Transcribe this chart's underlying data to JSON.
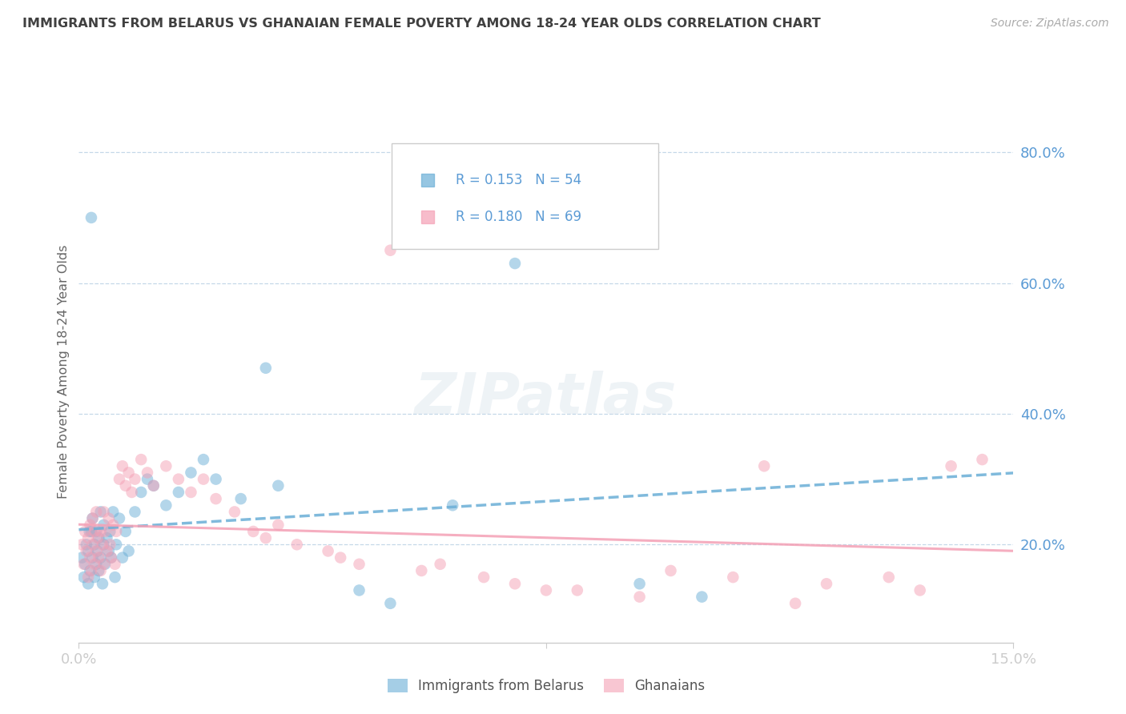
{
  "title": "IMMIGRANTS FROM BELARUS VS GHANAIAN FEMALE POVERTY AMONG 18-24 YEAR OLDS CORRELATION CHART",
  "source": "Source: ZipAtlas.com",
  "ylabel": "Female Poverty Among 18-24 Year Olds",
  "xlim": [
    0.0,
    15.0
  ],
  "ylim": [
    5.0,
    88.0
  ],
  "yticks_right": [
    20.0,
    40.0,
    60.0,
    80.0
  ],
  "legend_r1": "0.153",
  "legend_n1": "54",
  "legend_r2": "0.180",
  "legend_n2": "69",
  "series1_label": "Immigrants from Belarus",
  "series2_label": "Ghanaians",
  "color_blue": "#6aaed6",
  "color_pink": "#f4a0b5",
  "color_axis_text": "#5b9bd5",
  "color_title": "#404040",
  "background": "#ffffff",
  "blue_scatter_x": [
    0.05,
    0.08,
    0.1,
    0.12,
    0.15,
    0.15,
    0.17,
    0.18,
    0.2,
    0.2,
    0.22,
    0.22,
    0.25,
    0.25,
    0.28,
    0.28,
    0.3,
    0.32,
    0.32,
    0.35,
    0.35,
    0.38,
    0.4,
    0.4,
    0.42,
    0.45,
    0.48,
    0.5,
    0.52,
    0.55,
    0.58,
    0.6,
    0.65,
    0.7,
    0.75,
    0.8,
    0.9,
    1.0,
    1.1,
    1.2,
    1.4,
    1.6,
    1.8,
    2.0,
    2.2,
    2.6,
    3.0,
    3.2,
    4.5,
    5.0,
    6.0,
    7.0,
    9.0,
    10.0
  ],
  "blue_scatter_y": [
    18.0,
    15.0,
    17.0,
    20.0,
    14.0,
    19.0,
    22.0,
    16.0,
    70.0,
    22.0,
    18.0,
    24.0,
    15.0,
    20.0,
    17.0,
    22.0,
    19.0,
    16.0,
    21.0,
    25.0,
    18.0,
    14.0,
    20.0,
    23.0,
    17.0,
    21.0,
    19.0,
    22.0,
    18.0,
    25.0,
    15.0,
    20.0,
    24.0,
    18.0,
    22.0,
    19.0,
    25.0,
    28.0,
    30.0,
    29.0,
    26.0,
    28.0,
    31.0,
    33.0,
    30.0,
    27.0,
    47.0,
    29.0,
    13.0,
    11.0,
    26.0,
    63.0,
    14.0,
    12.0
  ],
  "pink_scatter_x": [
    0.05,
    0.08,
    0.1,
    0.12,
    0.15,
    0.15,
    0.18,
    0.18,
    0.2,
    0.22,
    0.22,
    0.25,
    0.25,
    0.28,
    0.28,
    0.3,
    0.32,
    0.35,
    0.35,
    0.38,
    0.4,
    0.4,
    0.42,
    0.45,
    0.48,
    0.5,
    0.52,
    0.55,
    0.58,
    0.6,
    0.65,
    0.7,
    0.75,
    0.8,
    0.85,
    0.9,
    1.0,
    1.1,
    1.2,
    1.4,
    1.6,
    1.8,
    2.0,
    2.2,
    2.5,
    2.8,
    3.2,
    3.5,
    4.0,
    4.5,
    5.0,
    5.5,
    6.5,
    7.0,
    8.0,
    9.5,
    10.5,
    11.0,
    12.0,
    13.0,
    14.0,
    14.5,
    3.0,
    4.2,
    5.8,
    7.5,
    9.0,
    11.5,
    13.5
  ],
  "pink_scatter_y": [
    20.0,
    17.0,
    22.0,
    19.0,
    15.0,
    21.0,
    18.0,
    23.0,
    16.0,
    20.0,
    24.0,
    17.0,
    22.0,
    19.0,
    25.0,
    21.0,
    18.0,
    16.0,
    22.0,
    20.0,
    25.0,
    17.0,
    22.0,
    19.0,
    24.0,
    20.0,
    18.0,
    23.0,
    17.0,
    22.0,
    30.0,
    32.0,
    29.0,
    31.0,
    28.0,
    30.0,
    33.0,
    31.0,
    29.0,
    32.0,
    30.0,
    28.0,
    30.0,
    27.0,
    25.0,
    22.0,
    23.0,
    20.0,
    19.0,
    17.0,
    65.0,
    16.0,
    15.0,
    14.0,
    13.0,
    16.0,
    15.0,
    32.0,
    14.0,
    15.0,
    32.0,
    33.0,
    21.0,
    18.0,
    17.0,
    13.0,
    12.0,
    11.0,
    13.0
  ]
}
